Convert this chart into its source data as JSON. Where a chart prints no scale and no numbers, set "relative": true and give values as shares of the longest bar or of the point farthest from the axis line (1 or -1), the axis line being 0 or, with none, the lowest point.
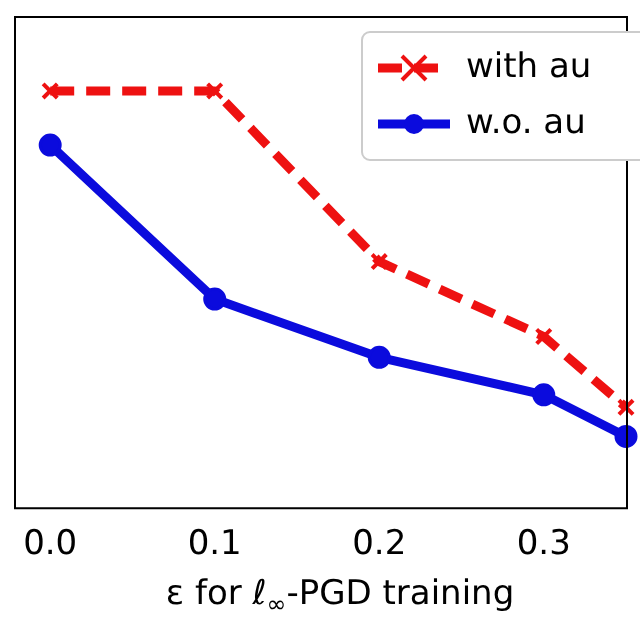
{
  "chart_data": {
    "type": "line",
    "relative": true,
    "xlabel": "ε for ℓ$_{∞}$-PGD training",
    "xlim": [
      -0.022,
      0.35
    ],
    "xticks": [
      {
        "value": 0,
        "label": "0.0"
      },
      {
        "value": 0.1,
        "label": "0.1"
      },
      {
        "value": 0.2,
        "label": "0.2"
      },
      {
        "value": 0.3,
        "label": "0.3"
      }
    ],
    "x": [
      0,
      0.1,
      0.2,
      0.3,
      0.35
    ],
    "series": [
      {
        "name": "with au",
        "color": "#ee1111",
        "values": [
          1,
          1,
          0.59,
          0.41,
          0.24
        ],
        "marker": "cross",
        "line_style": "dashed"
      },
      {
        "name": "w.o. au",
        "color": "#0b0bdd",
        "values": [
          0.87,
          0.5,
          0.36,
          0.27,
          0.17
        ],
        "marker": "circle",
        "line_style": "solid"
      }
    ],
    "legend": "top right",
    "grid": false
  }
}
